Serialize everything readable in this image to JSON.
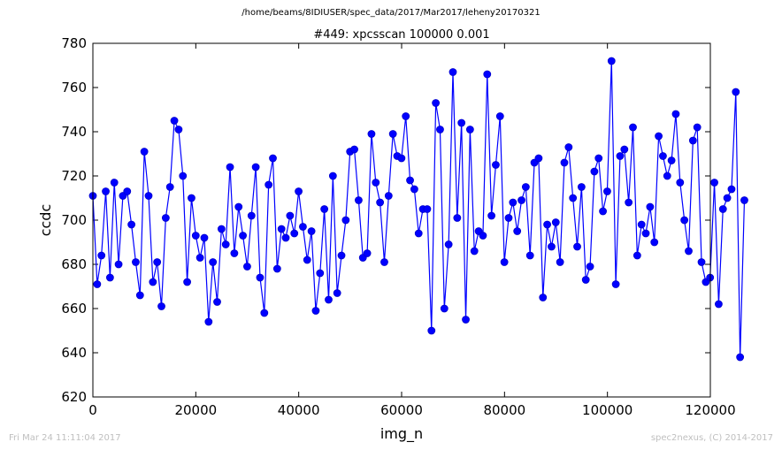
{
  "header": {
    "path": "/home/beams/8IDIUSER/spec_data/2017/Mar2017/leheny20170321"
  },
  "footer": {
    "timestamp": "Fri Mar 24 11:11:04 2017",
    "credit": "spec2nexus, (C) 2014-2017"
  },
  "colors": {
    "series": "#0000ff",
    "marker": "#0000cc",
    "axes": "#000000",
    "footer_text": "#bfbfbf"
  },
  "chart_data": {
    "type": "line",
    "title": "#449: xpcsscan 100000 0.001",
    "xlabel": "img_n",
    "ylabel": "ccdc",
    "xlim": [
      0,
      120000
    ],
    "ylim": [
      620,
      780
    ],
    "xticks": [
      "0",
      "20000",
      "40000",
      "60000",
      "80000",
      "100000",
      "120000"
    ],
    "yticks": [
      "620",
      "640",
      "660",
      "680",
      "700",
      "720",
      "740",
      "760",
      "780"
    ],
    "grid": false,
    "markers": true,
    "x_start": 0,
    "x_step": 833,
    "values": [
      711,
      671,
      684,
      713,
      674,
      717,
      680,
      711,
      713,
      698,
      681,
      666,
      731,
      711,
      672,
      681,
      661,
      701,
      715,
      745,
      741,
      720,
      672,
      710,
      693,
      683,
      692,
      654,
      681,
      663,
      696,
      689,
      724,
      685,
      706,
      693,
      679,
      702,
      724,
      674,
      658,
      716,
      728,
      678,
      696,
      692,
      702,
      694,
      713,
      697,
      682,
      695,
      659,
      676,
      705,
      664,
      720,
      667,
      684,
      700,
      731,
      732,
      709,
      683,
      685,
      739,
      717,
      708,
      681,
      711,
      739,
      729,
      728,
      747,
      718,
      714,
      694,
      705,
      705,
      650,
      753,
      741,
      660,
      689,
      767,
      701,
      744,
      655,
      741,
      686,
      695,
      693,
      766,
      702,
      725,
      747,
      681,
      701,
      708,
      695,
      709,
      715,
      684,
      726,
      728,
      665,
      698,
      688,
      699,
      681,
      726,
      733,
      710,
      688,
      715,
      673,
      679,
      722,
      728,
      704,
      713,
      772,
      671,
      729,
      732,
      708,
      742,
      684,
      698,
      694,
      706,
      690,
      738,
      729,
      720,
      727,
      748,
      717,
      700,
      686,
      736,
      742,
      681,
      672,
      674,
      717,
      662,
      705,
      710,
      714,
      758,
      638,
      709
    ]
  }
}
